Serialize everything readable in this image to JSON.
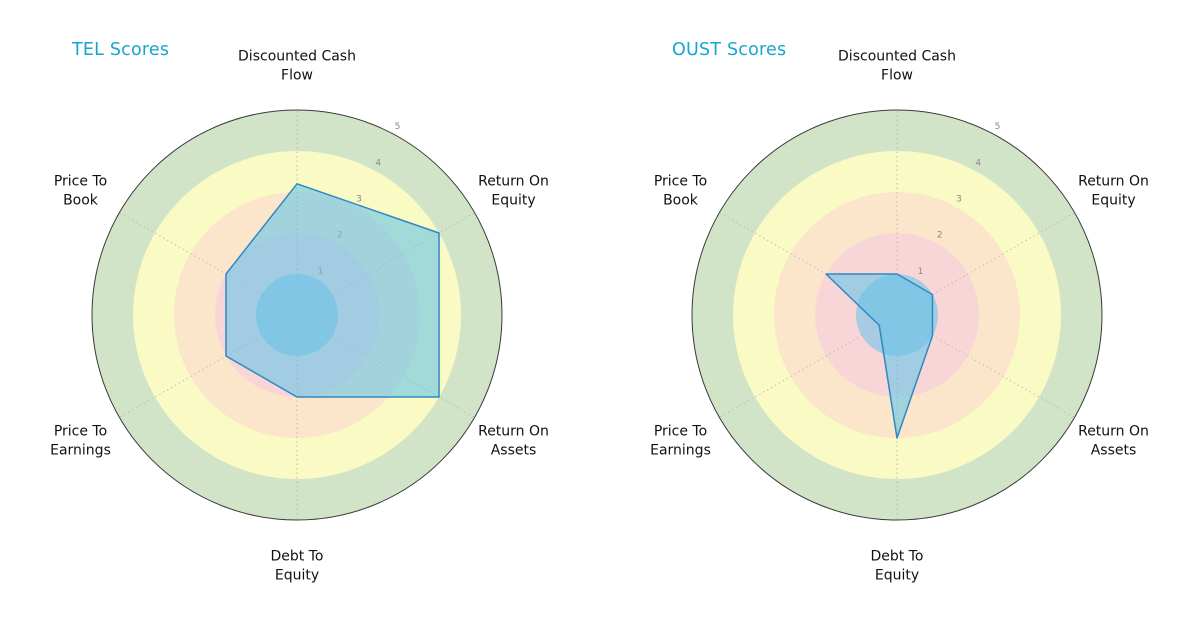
{
  "page": {
    "background": "#ffffff"
  },
  "chart_data": [
    {
      "type": "radar",
      "title": "TEL Scores",
      "title_color": "#17a5cf",
      "categories": [
        "Discounted Cash\nFlow",
        "Return On\nEquity",
        "Return On\nAssets",
        "Debt To\nEquity",
        "Price To\nEarnings",
        "Price To\nBook"
      ],
      "values": [
        3.2,
        4,
        4,
        2,
        2,
        2
      ],
      "range": [
        0,
        5
      ],
      "radial_ticks": [
        1,
        2,
        3,
        4,
        5
      ],
      "ring_colors": [
        "#a7cbe2",
        "#f8d6d8",
        "#fbe5cb",
        "#fafac4",
        "#d2e4c7"
      ],
      "polygon_fill": "#67c5e8",
      "polygon_fill_opacity": 0.6,
      "polygon_stroke": "#2d89c3",
      "grid": "dotted-spokes",
      "legend": "none"
    },
    {
      "type": "radar",
      "title": "OUST Scores",
      "title_color": "#17a5cf",
      "categories": [
        "Discounted Cash\nFlow",
        "Return On\nEquity",
        "Return On\nAssets",
        "Debt To\nEquity",
        "Price To\nEarnings",
        "Price To\nBook"
      ],
      "values": [
        1,
        1,
        1,
        3,
        0.5,
        2
      ],
      "range": [
        0,
        5
      ],
      "radial_ticks": [
        1,
        2,
        3,
        4,
        5
      ],
      "ring_colors": [
        "#a7cbe2",
        "#f8d6d8",
        "#fbe5cb",
        "#fafac4",
        "#d2e4c7"
      ],
      "polygon_fill": "#67c5e8",
      "polygon_fill_opacity": 0.6,
      "polygon_stroke": "#2d89c3",
      "grid": "dotted-spokes",
      "legend": "none"
    }
  ]
}
